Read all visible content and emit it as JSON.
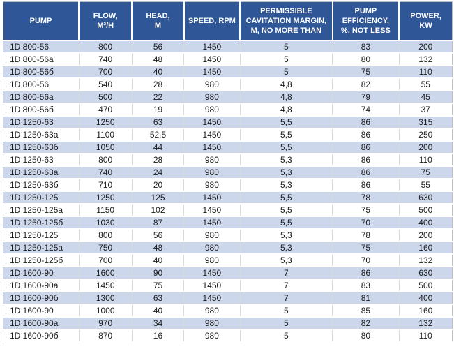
{
  "colors": {
    "header_bg": "#2f5697",
    "stripe_bg": "#ccd7ec",
    "row_bg": "#ffffff",
    "header_text": "#ffffff",
    "body_text": "#1c1c1c"
  },
  "table": {
    "columns": [
      {
        "key": "pump",
        "label": "PUMP"
      },
      {
        "key": "flow",
        "label": "FLOW,\nM³/H"
      },
      {
        "key": "head",
        "label": "HEAD,\nM"
      },
      {
        "key": "speed",
        "label": "SPEED, RPM"
      },
      {
        "key": "cavitation_margin",
        "label": "PERMISSIBLE\nCAVITATION MARGIN,\nM, NO MORE THAN"
      },
      {
        "key": "efficiency",
        "label": "PUMP\nEFFICIENCY,\n%, NOT LESS"
      },
      {
        "key": "power",
        "label": "POWER,\nKW"
      }
    ],
    "rows": [
      [
        "1D 800-56",
        "800",
        "56",
        "1450",
        "5",
        "83",
        "200"
      ],
      [
        "1D 800-56a",
        "740",
        "48",
        "1450",
        "5",
        "80",
        "132"
      ],
      [
        "1D 800-56б",
        "700",
        "40",
        "1450",
        "5",
        "75",
        "110"
      ],
      [
        "1D 800-56",
        "540",
        "28",
        "980",
        "4,8",
        "82",
        "55"
      ],
      [
        "1D 800-56a",
        "500",
        "22",
        "980",
        "4,8",
        "79",
        "45"
      ],
      [
        "1D 800-56б",
        "470",
        "19",
        "980",
        "4,8",
        "74",
        "37"
      ],
      [
        "1D 1250-63",
        "1250",
        "63",
        "1450",
        "5,5",
        "86",
        "315"
      ],
      [
        "1D 1250-63a",
        "1100",
        "52,5",
        "1450",
        "5,5",
        "86",
        "250"
      ],
      [
        "1D 1250-63б",
        "1050",
        "44",
        "1450",
        "5,5",
        "86",
        "200"
      ],
      [
        "1D 1250-63",
        "800",
        "28",
        "980",
        "5,3",
        "86",
        "110"
      ],
      [
        "1D 1250-63a",
        "740",
        "24",
        "980",
        "5,3",
        "86",
        "75"
      ],
      [
        "1D 1250-63б",
        "710",
        "20",
        "980",
        "5,3",
        "86",
        "55"
      ],
      [
        "1D 1250-125",
        "1250",
        "125",
        "1450",
        "5,5",
        "78",
        "630"
      ],
      [
        "1D 1250-125a",
        "1150",
        "102",
        "1450",
        "5,5",
        "75",
        "500"
      ],
      [
        "1D 1250-125б",
        "1030",
        "87",
        "1450",
        "5,5",
        "70",
        "400"
      ],
      [
        "1D 1250-125",
        "800",
        "56",
        "980",
        "5,3",
        "78",
        "200"
      ],
      [
        "1D 1250-125a",
        "750",
        "48",
        "980",
        "5,3",
        "75",
        "160"
      ],
      [
        "1D 1250-125б",
        "700",
        "40",
        "980",
        "5,3",
        "70",
        "132"
      ],
      [
        "1D 1600-90",
        "1600",
        "90",
        "1450",
        "7",
        "86",
        "630"
      ],
      [
        "1D 1600-90a",
        "1450",
        "75",
        "1450",
        "7",
        "83",
        "500"
      ],
      [
        "1D 1600-90б",
        "1300",
        "63",
        "1450",
        "7",
        "81",
        "400"
      ],
      [
        "1D 1600-90",
        "1000",
        "40",
        "980",
        "5",
        "85",
        "160"
      ],
      [
        "1D 1600-90a",
        "970",
        "34",
        "980",
        "5",
        "82",
        "132"
      ],
      [
        "1D 1600-90б",
        "870",
        "16",
        "980",
        "5",
        "80",
        "110"
      ]
    ]
  }
}
